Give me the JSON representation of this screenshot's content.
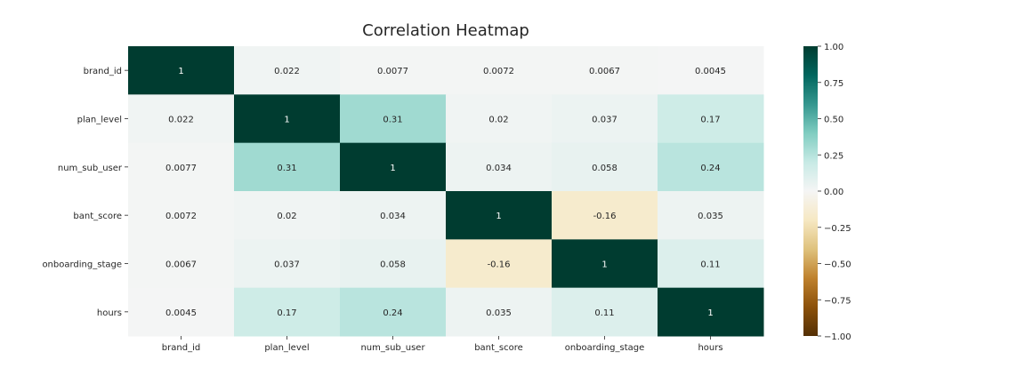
{
  "chart_data": {
    "type": "heatmap",
    "title": "Correlation Heatmap",
    "xlabel": "",
    "ylabel": "",
    "x_categories": [
      "brand_id",
      "plan_level",
      "num_sub_user",
      "bant_score",
      "onboarding_stage",
      "hours"
    ],
    "y_categories": [
      "brand_id",
      "plan_level",
      "num_sub_user",
      "bant_score",
      "onboarding_stage",
      "hours"
    ],
    "values": [
      [
        1,
        0.022,
        0.0077,
        0.0072,
        0.0067,
        0.0045
      ],
      [
        0.022,
        1,
        0.31,
        0.02,
        0.037,
        0.17
      ],
      [
        0.0077,
        0.31,
        1,
        0.034,
        0.058,
        0.24
      ],
      [
        0.0072,
        0.02,
        0.034,
        1,
        -0.16,
        0.035
      ],
      [
        0.0067,
        0.037,
        0.058,
        -0.16,
        1,
        0.11
      ],
      [
        0.0045,
        0.17,
        0.24,
        0.035,
        0.11,
        1
      ]
    ],
    "labels": [
      [
        "1",
        "0.022",
        "0.0077",
        "0.0072",
        "0.0067",
        "0.0045"
      ],
      [
        "0.022",
        "1",
        "0.31",
        "0.02",
        "0.037",
        "0.17"
      ],
      [
        "0.0077",
        "0.31",
        "1",
        "0.034",
        "0.058",
        "0.24"
      ],
      [
        "0.0072",
        "0.02",
        "0.034",
        "1",
        "-0.16",
        "0.035"
      ],
      [
        "0.0067",
        "0.037",
        "0.058",
        "-0.16",
        "1",
        "0.11"
      ],
      [
        "0.0045",
        "0.17",
        "0.24",
        "0.035",
        "0.11",
        "1"
      ]
    ],
    "colorbar": {
      "vmin": -1,
      "vmax": 1,
      "ticks": [
        1.0,
        0.75,
        0.5,
        0.25,
        0.0,
        -0.25,
        -0.5,
        -0.75,
        -1.0
      ],
      "tick_labels": [
        "1.00",
        "0.75",
        "0.50",
        "0.25",
        "0.00",
        "−0.25",
        "−0.50",
        "−0.75",
        "−1.00"
      ],
      "colormap": "BrBG",
      "colormap_stops": [
        "#543005",
        "#8c510a",
        "#bf812d",
        "#dfc27d",
        "#f6e8c3",
        "#f5f5f5",
        "#c7eae5",
        "#80cdc1",
        "#35978f",
        "#01665e",
        "#003c30"
      ]
    }
  }
}
